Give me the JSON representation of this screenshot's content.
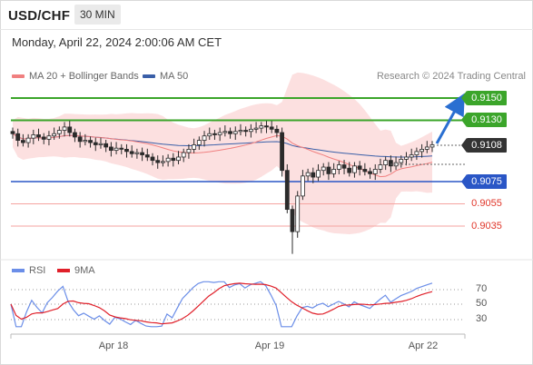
{
  "header": {
    "symbol": "USD/CHF",
    "timeframe": "30 MIN"
  },
  "datetime": "Monday, April 22, 2024 2:00:06 AM CET",
  "legend": {
    "ma20_label": "MA 20 + Bollinger Bands",
    "ma50_label": "MA 50",
    "credit": "Research © 2024 Trading Central"
  },
  "colors": {
    "green": "#3ba52a",
    "blue": "#2a56c6",
    "red": "#e0362a",
    "dark": "#333333",
    "ma20": "#f08080",
    "ma50": "#3a5fa8",
    "rsi": "#6b8ee8",
    "rsi_ma": "#e0202a"
  },
  "price_levels": [
    {
      "value": "0.9150",
      "style": "green"
    },
    {
      "value": "0.9130",
      "style": "green"
    },
    {
      "value": "0.9108",
      "style": "dark"
    },
    {
      "value": "0.9075",
      "style": "blue"
    },
    {
      "value": "0.9055",
      "style": "red"
    },
    {
      "value": "0.9035",
      "style": "red"
    }
  ],
  "rsi": {
    "legend_rsi": "RSI",
    "legend_ma": "9MA",
    "levels": [
      "70",
      "50",
      "30"
    ]
  },
  "x_axis": {
    "labels": [
      "Apr 18",
      "Apr 19",
      "Apr 22"
    ]
  },
  "chart_data": {
    "type": "candlestick",
    "price_levels": [
      0.915,
      0.913,
      0.9108,
      0.9075,
      0.9055,
      0.9035
    ],
    "current_price": 0.9108,
    "x_labels": [
      "Apr 18",
      "Apr 19",
      "Apr 22"
    ],
    "close_series": [
      0.9118,
      0.9112,
      0.911,
      0.9114,
      0.9117,
      0.9115,
      0.9113,
      0.9116,
      0.9118,
      0.9121,
      0.9124,
      0.9119,
      0.9115,
      0.9111,
      0.9112,
      0.911,
      0.9108,
      0.9109,
      0.9106,
      0.9103,
      0.9105,
      0.9104,
      0.9102,
      0.91,
      0.9101,
      0.9099,
      0.9097,
      0.9094,
      0.9092,
      0.9093,
      0.9096,
      0.9094,
      0.9097,
      0.9101,
      0.9104,
      0.9108,
      0.9112,
      0.9116,
      0.9118,
      0.9117,
      0.9119,
      0.912,
      0.9118,
      0.912,
      0.9121,
      0.912,
      0.9122,
      0.9123,
      0.9125,
      0.9124,
      0.9122,
      0.9119,
      0.9085,
      0.905,
      0.903,
      0.9062,
      0.908,
      0.9083,
      0.9079,
      0.9085,
      0.9088,
      0.9082,
      0.9086,
      0.909,
      0.9087,
      0.9083,
      0.9089,
      0.9086,
      0.9084,
      0.9082,
      0.9086,
      0.909,
      0.9094,
      0.9089,
      0.9092,
      0.9095,
      0.9097,
      0.9099,
      0.9102,
      0.9104,
      0.9106,
      0.9108
    ],
    "rsi_levels": [
      70,
      50,
      30
    ]
  }
}
